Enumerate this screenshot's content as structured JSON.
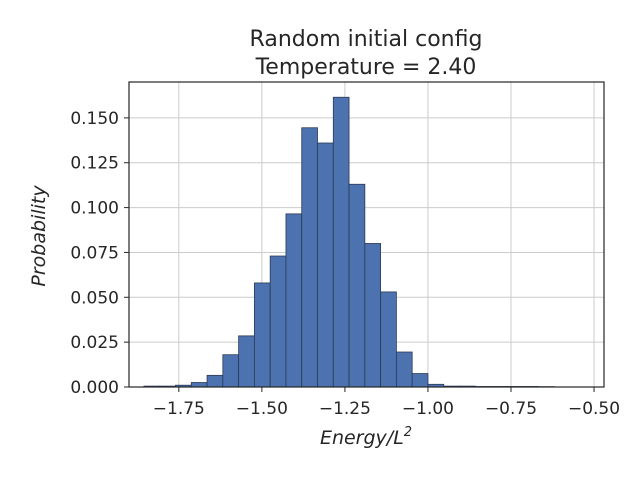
{
  "chart_data": {
    "type": "bar",
    "title_lines": [
      "Random initial config",
      "Temperature = 2.40"
    ],
    "xlabel_base": "Energy/L",
    "xlabel_sup": "2",
    "ylabel": "Probability",
    "xlim": [
      -1.9,
      -0.47
    ],
    "ylim": [
      0,
      0.17
    ],
    "grid": true,
    "xticks": [
      -1.75,
      -1.5,
      -1.25,
      -1.0,
      -0.75,
      -0.5
    ],
    "xtick_labels": [
      "−1.75",
      "−1.50",
      "−1.25",
      "−1.00",
      "−0.75",
      "−0.50"
    ],
    "yticks": [
      0.0,
      0.025,
      0.05,
      0.075,
      0.1,
      0.125,
      0.15
    ],
    "ytick_labels": [
      "0.000",
      "0.025",
      "0.050",
      "0.075",
      "0.100",
      "0.125",
      "0.150"
    ],
    "bin_width": 0.0475,
    "bins": [
      {
        "x0": -1.855,
        "value": 0.0005
      },
      {
        "x0": -1.8075,
        "value": 0.0005
      },
      {
        "x0": -1.76,
        "value": 0.001
      },
      {
        "x0": -1.7125,
        "value": 0.0025
      },
      {
        "x0": -1.665,
        "value": 0.0065
      },
      {
        "x0": -1.6175,
        "value": 0.018
      },
      {
        "x0": -1.57,
        "value": 0.0285
      },
      {
        "x0": -1.5225,
        "value": 0.058
      },
      {
        "x0": -1.475,
        "value": 0.073
      },
      {
        "x0": -1.4275,
        "value": 0.0965
      },
      {
        "x0": -1.38,
        "value": 0.1445
      },
      {
        "x0": -1.3325,
        "value": 0.136
      },
      {
        "x0": -1.285,
        "value": 0.1615
      },
      {
        "x0": -1.2375,
        "value": 0.113
      },
      {
        "x0": -1.19,
        "value": 0.08
      },
      {
        "x0": -1.1425,
        "value": 0.053
      },
      {
        "x0": -1.095,
        "value": 0.0195
      },
      {
        "x0": -1.0475,
        "value": 0.0075
      },
      {
        "x0": -1.0,
        "value": 0.0015
      },
      {
        "x0": -0.9525,
        "value": 0.0005
      },
      {
        "x0": -0.905,
        "value": 0.0005
      },
      {
        "x0": -0.8575,
        "value": 0.0003
      },
      {
        "x0": -0.81,
        "value": 0.0003
      },
      {
        "x0": -0.7625,
        "value": 0.0003
      },
      {
        "x0": -0.715,
        "value": 0.0003
      },
      {
        "x0": -0.6675,
        "value": 0.0002
      }
    ]
  }
}
